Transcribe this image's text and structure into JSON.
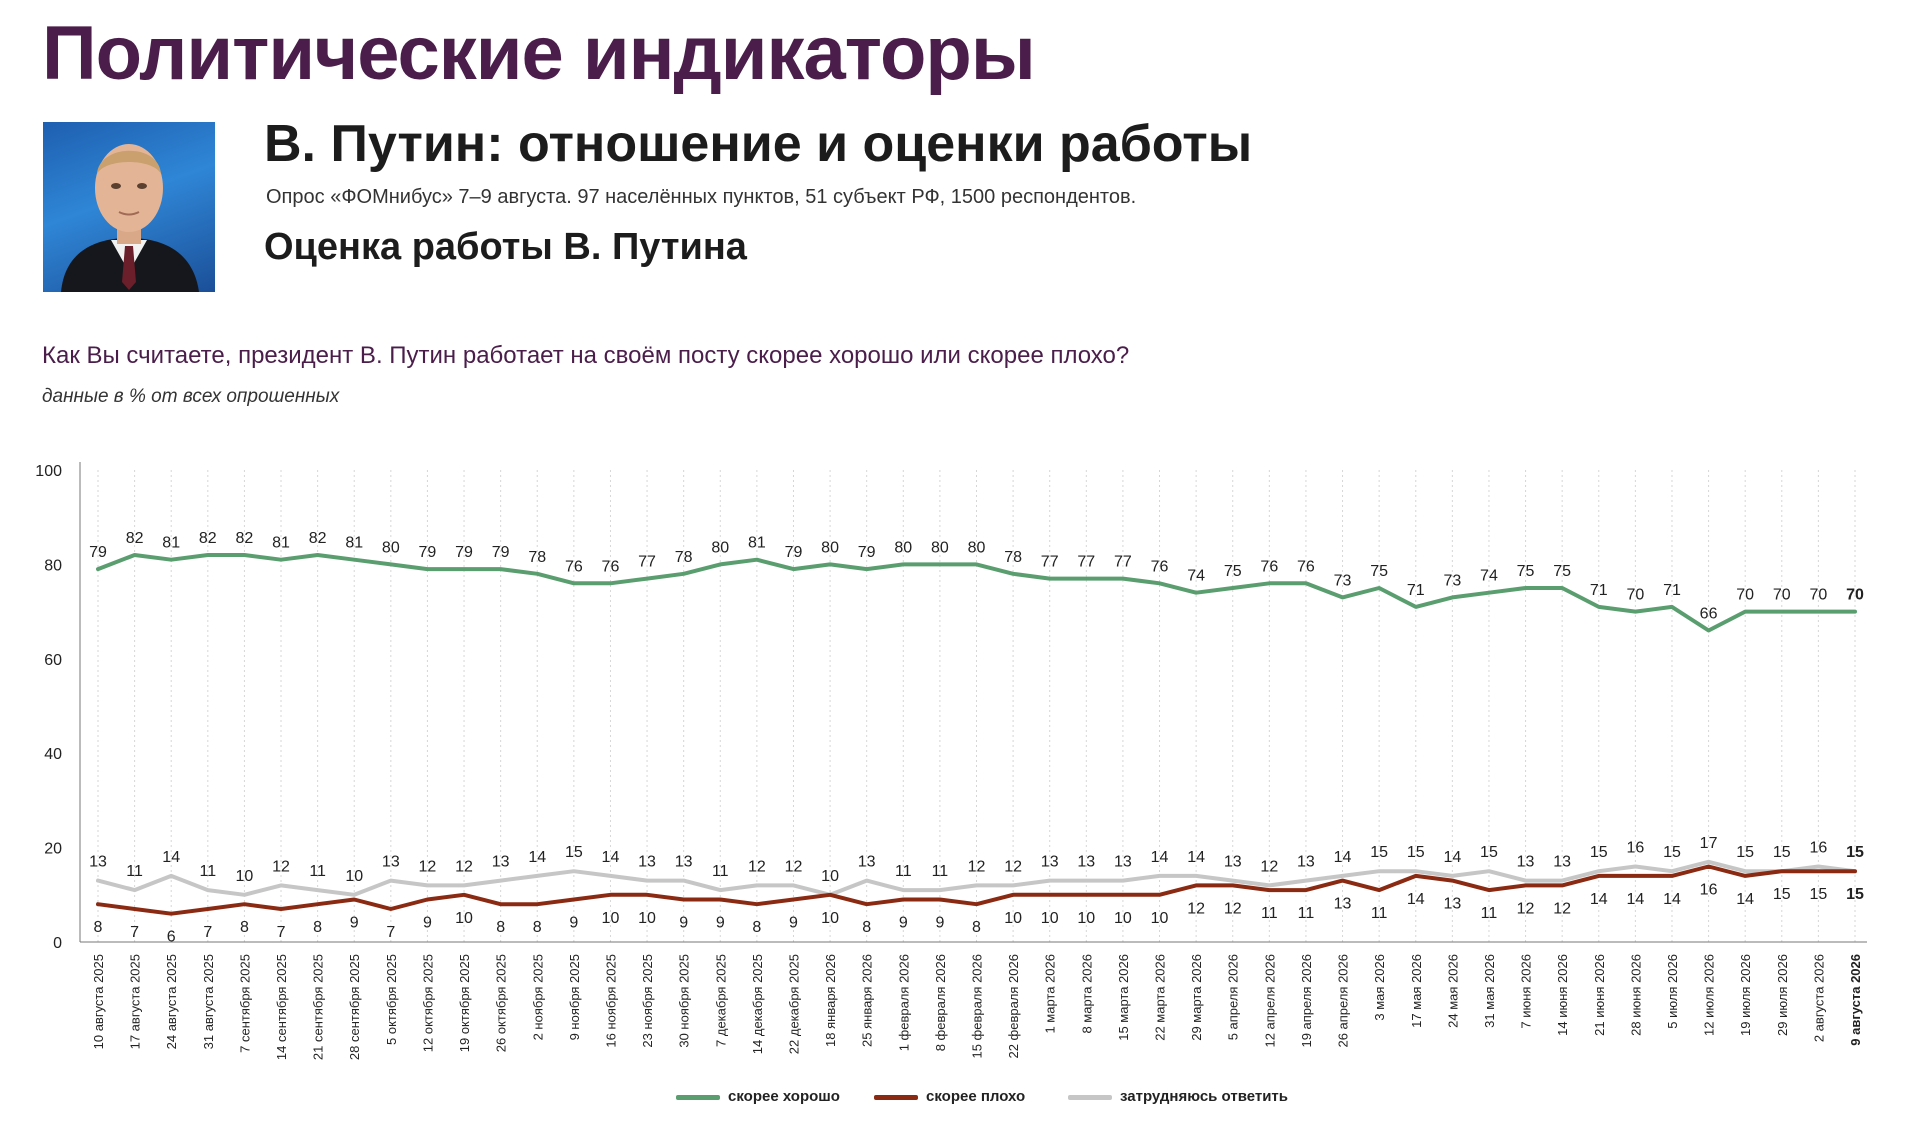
{
  "header": {
    "title": "Политические индикаторы",
    "subtitle": "В. Путин: отношение и оценки работы",
    "survey": "Опрос «ФОМнибус» 7–9 августа. 97 населённых пунктов, 51 субъект РФ, 1500 респондентов.",
    "chart_heading": "Оценка работы В. Путина"
  },
  "question": "Как Вы считаете, президент В. Путин работает на своём посту скорее хорошо или скорее плохо?",
  "note": "данные в % от всех опрошенных",
  "colors": {
    "title": "#4a1d4b",
    "good": "#5a9e6f",
    "bad": "#8b2a12",
    "unsure": "#c6c6c6"
  },
  "chart_data": {
    "type": "line",
    "ylim": [
      0,
      100
    ],
    "yticks": [
      0,
      20,
      40,
      60,
      80,
      100
    ],
    "grid": "vertical dotted",
    "legend": "bottom-center",
    "categories": [
      "10 августа 2025",
      "17 августа 2025",
      "24 августа 2025",
      "31 августа 2025",
      "7 сентября 2025",
      "14 сентября 2025",
      "21 сентября 2025",
      "28 сентября 2025",
      "5 октября 2025",
      "12 октября 2025",
      "19 октября 2025",
      "26 октября 2025",
      "2 ноября 2025",
      "9 ноября 2025",
      "16 ноября 2025",
      "23 ноября 2025",
      "30 ноября 2025",
      "7 декабря 2025",
      "14 декабря 2025",
      "22 декабря 2025",
      "18 января 2026",
      "25 января 2026",
      "1 февраля 2026",
      "8 февраля 2026",
      "15 февраля 2026",
      "22 февраля 2026",
      "1 марта 2026",
      "8 марта 2026",
      "15 марта 2026",
      "22 марта 2026",
      "29 марта 2026",
      "5 апреля 2026",
      "12 апреля 2026",
      "19 апреля 2026",
      "26 апреля 2026",
      "3 мая 2026",
      "17 мая 2026",
      "24 мая 2026",
      "31 мая 2026",
      "7 июня 2026",
      "14 июня 2026",
      "21 июня 2026",
      "28 июня 2026",
      "5 июля 2026",
      "12 июля 2026",
      "19 июля 2026",
      "29 июля 2026",
      "2 августа 2026",
      "9 августа 2026"
    ],
    "series": [
      {
        "name": "скорее хорошо",
        "color": "#5a9e6f",
        "values": [
          79,
          82,
          81,
          82,
          82,
          81,
          82,
          81,
          80,
          79,
          79,
          79,
          78,
          76,
          76,
          77,
          78,
          80,
          81,
          79,
          80,
          79,
          80,
          80,
          80,
          78,
          77,
          77,
          77,
          76,
          74,
          75,
          76,
          76,
          73,
          75,
          71,
          73,
          74,
          75,
          75,
          71,
          70,
          71,
          66,
          70,
          70,
          70,
          70
        ]
      },
      {
        "name": "скорее плохо",
        "color": "#8b2a12",
        "values": [
          8,
          7,
          6,
          7,
          8,
          7,
          8,
          9,
          7,
          9,
          10,
          8,
          8,
          9,
          10,
          10,
          9,
          9,
          8,
          9,
          10,
          8,
          9,
          9,
          8,
          10,
          10,
          10,
          10,
          10,
          12,
          12,
          11,
          11,
          13,
          11,
          14,
          13,
          11,
          12,
          12,
          14,
          14,
          14,
          16,
          14,
          15,
          15,
          15
        ]
      },
      {
        "name": "затрудняюсь ответить",
        "color": "#c6c6c6",
        "values": [
          13,
          11,
          14,
          11,
          10,
          12,
          11,
          10,
          13,
          12,
          12,
          13,
          14,
          15,
          14,
          13,
          13,
          11,
          12,
          12,
          10,
          13,
          11,
          11,
          12,
          12,
          13,
          13,
          13,
          14,
          14,
          13,
          12,
          13,
          14,
          15,
          15,
          14,
          15,
          13,
          13,
          15,
          16,
          15,
          17,
          15,
          15,
          16,
          15
        ]
      }
    ]
  }
}
